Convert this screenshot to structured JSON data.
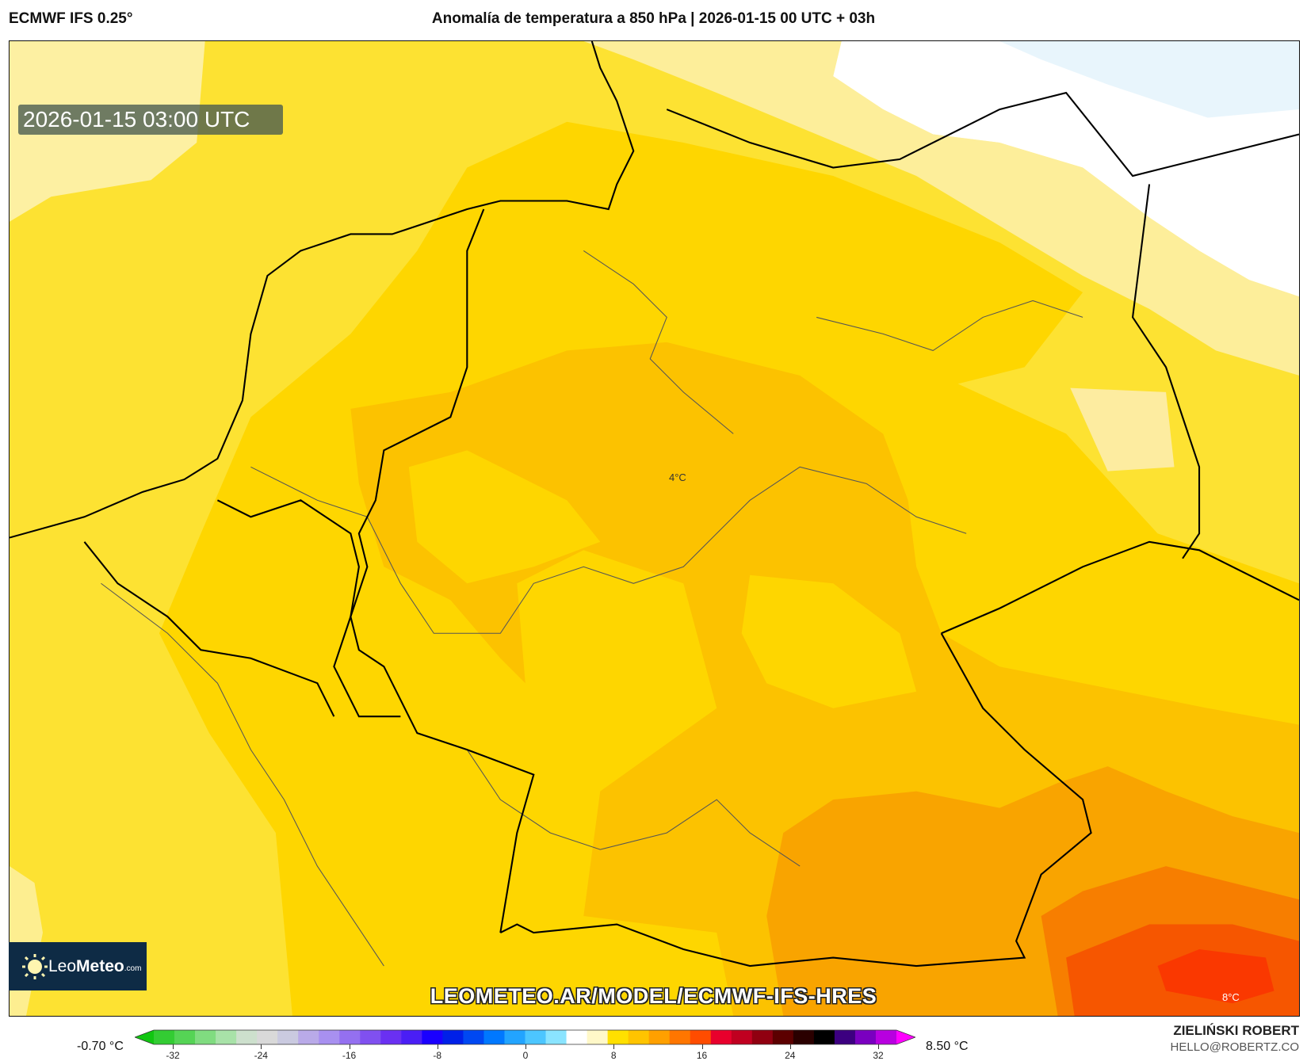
{
  "header": {
    "model": "ECMWF IFS 0.25°",
    "title": "Anomalía de temperatura a 850 hPa | 2026-01-15 00 UTC + 03h"
  },
  "map": {
    "valid_time": "2026-01-15 03:00 UTC",
    "watermark": "LEOMETEO.AR/MODEL/ECMWF-IFS-HRES",
    "labels": [
      "4°C",
      "8°C"
    ],
    "logo": {
      "leo": "Leo",
      "meteo": "Meteo",
      "com": ".com"
    },
    "fill_colors": {
      "pale": "#fdf0a2",
      "sea": "#e8f5fc",
      "yellow": "#fde232",
      "deep_yellow": "#fed600",
      "amber": "#fcc200",
      "orange": "#f9a400",
      "dark_orange": "#f77e00",
      "red_orange": "#f65600",
      "red": "#fa3800"
    }
  },
  "colorbar": {
    "min_label": "-0.70 °C",
    "max_label": "8.50 °C",
    "ticks": [
      "-32",
      "-24",
      "-16",
      "-8",
      "0",
      "8",
      "16",
      "24",
      "32"
    ],
    "tick_values": [
      -32,
      -24,
      -16,
      -8,
      0,
      8,
      16,
      24,
      32
    ],
    "colors": [
      "#11c611",
      "#33cc33",
      "#55d455",
      "#80dc80",
      "#a8e2a8",
      "#cde0cd",
      "#d9d9d9",
      "#cacae0",
      "#b9aae8",
      "#a890f0",
      "#9470f0",
      "#8050f0",
      "#6a30f2",
      "#4a1ef5",
      "#1a00ff",
      "#0020e8",
      "#0048f2",
      "#0078ff",
      "#22a4ff",
      "#4cc6ff",
      "#8ae4ff",
      "#ffffff",
      "#fff8c8",
      "#ffe000",
      "#ffc400",
      "#ffa000",
      "#ff7600",
      "#ff4c00",
      "#e8002c",
      "#c00020",
      "#900010",
      "#5c0000",
      "#2a0000",
      "#000000",
      "#3c0080",
      "#7a00c0",
      "#b800e0",
      "#ff00ff"
    ]
  },
  "credits": {
    "author": "ZIELIŃSKI ROBERT",
    "email": "HELLO@ROBERTZ.CO"
  }
}
